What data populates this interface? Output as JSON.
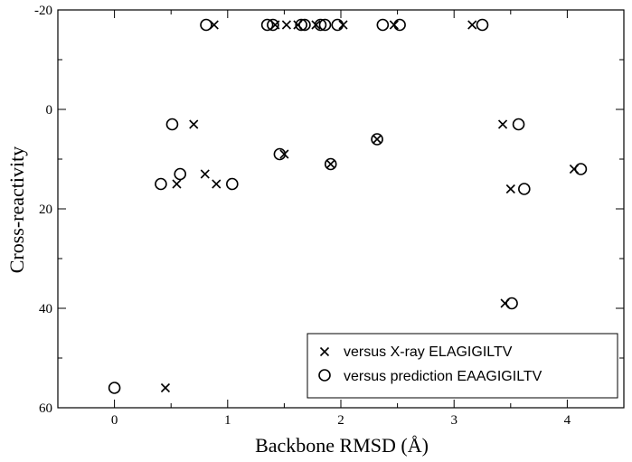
{
  "chart_data": {
    "type": "scatter",
    "title": "",
    "xlabel": "Backbone RMSD (Å)",
    "ylabel": "Cross-reactivity",
    "xlim": [
      -0.5,
      4.5
    ],
    "ylim": [
      -20,
      60
    ],
    "y_inverted": true,
    "x_ticks": [
      0,
      1,
      2,
      3,
      4
    ],
    "x_tick_labels": [
      "0",
      "1",
      "2",
      "3",
      "4"
    ],
    "y_ticks": [
      -20,
      0,
      20,
      40,
      60
    ],
    "y_tick_labels": [
      "-20",
      "0",
      "20",
      "40",
      "60"
    ],
    "grid": false,
    "legend_position": "bottom-right",
    "series": [
      {
        "name": "versus X-ray ELAGIGILTV",
        "marker": "x",
        "color": "#000000",
        "points": [
          [
            0.88,
            -17
          ],
          [
            1.42,
            -17
          ],
          [
            1.52,
            -17
          ],
          [
            1.62,
            -17
          ],
          [
            1.78,
            -17
          ],
          [
            2.02,
            -17
          ],
          [
            2.47,
            -17
          ],
          [
            3.16,
            -17
          ],
          [
            0.7,
            3
          ],
          [
            3.43,
            3
          ],
          [
            1.5,
            9
          ],
          [
            1.91,
            11
          ],
          [
            2.32,
            6
          ],
          [
            0.55,
            15
          ],
          [
            0.8,
            13
          ],
          [
            0.9,
            15
          ],
          [
            3.5,
            16
          ],
          [
            4.06,
            12
          ],
          [
            3.45,
            39
          ],
          [
            0.45,
            56
          ]
        ]
      },
      {
        "name": "versus prediction EAAGIGILTV",
        "marker": "o",
        "color": "#000000",
        "points": [
          [
            0.81,
            -17
          ],
          [
            1.35,
            -17
          ],
          [
            1.4,
            -17
          ],
          [
            1.65,
            -17
          ],
          [
            1.68,
            -17
          ],
          [
            1.82,
            -17
          ],
          [
            1.86,
            -17
          ],
          [
            1.97,
            -17
          ],
          [
            2.37,
            -17
          ],
          [
            2.52,
            -17
          ],
          [
            3.25,
            -17
          ],
          [
            0.51,
            3
          ],
          [
            3.57,
            3
          ],
          [
            1.46,
            9
          ],
          [
            1.91,
            11
          ],
          [
            2.32,
            6
          ],
          [
            0.41,
            15
          ],
          [
            0.58,
            13
          ],
          [
            1.04,
            15
          ],
          [
            3.62,
            16
          ],
          [
            4.12,
            12
          ],
          [
            3.51,
            39
          ],
          [
            0.0,
            56
          ]
        ]
      }
    ]
  }
}
